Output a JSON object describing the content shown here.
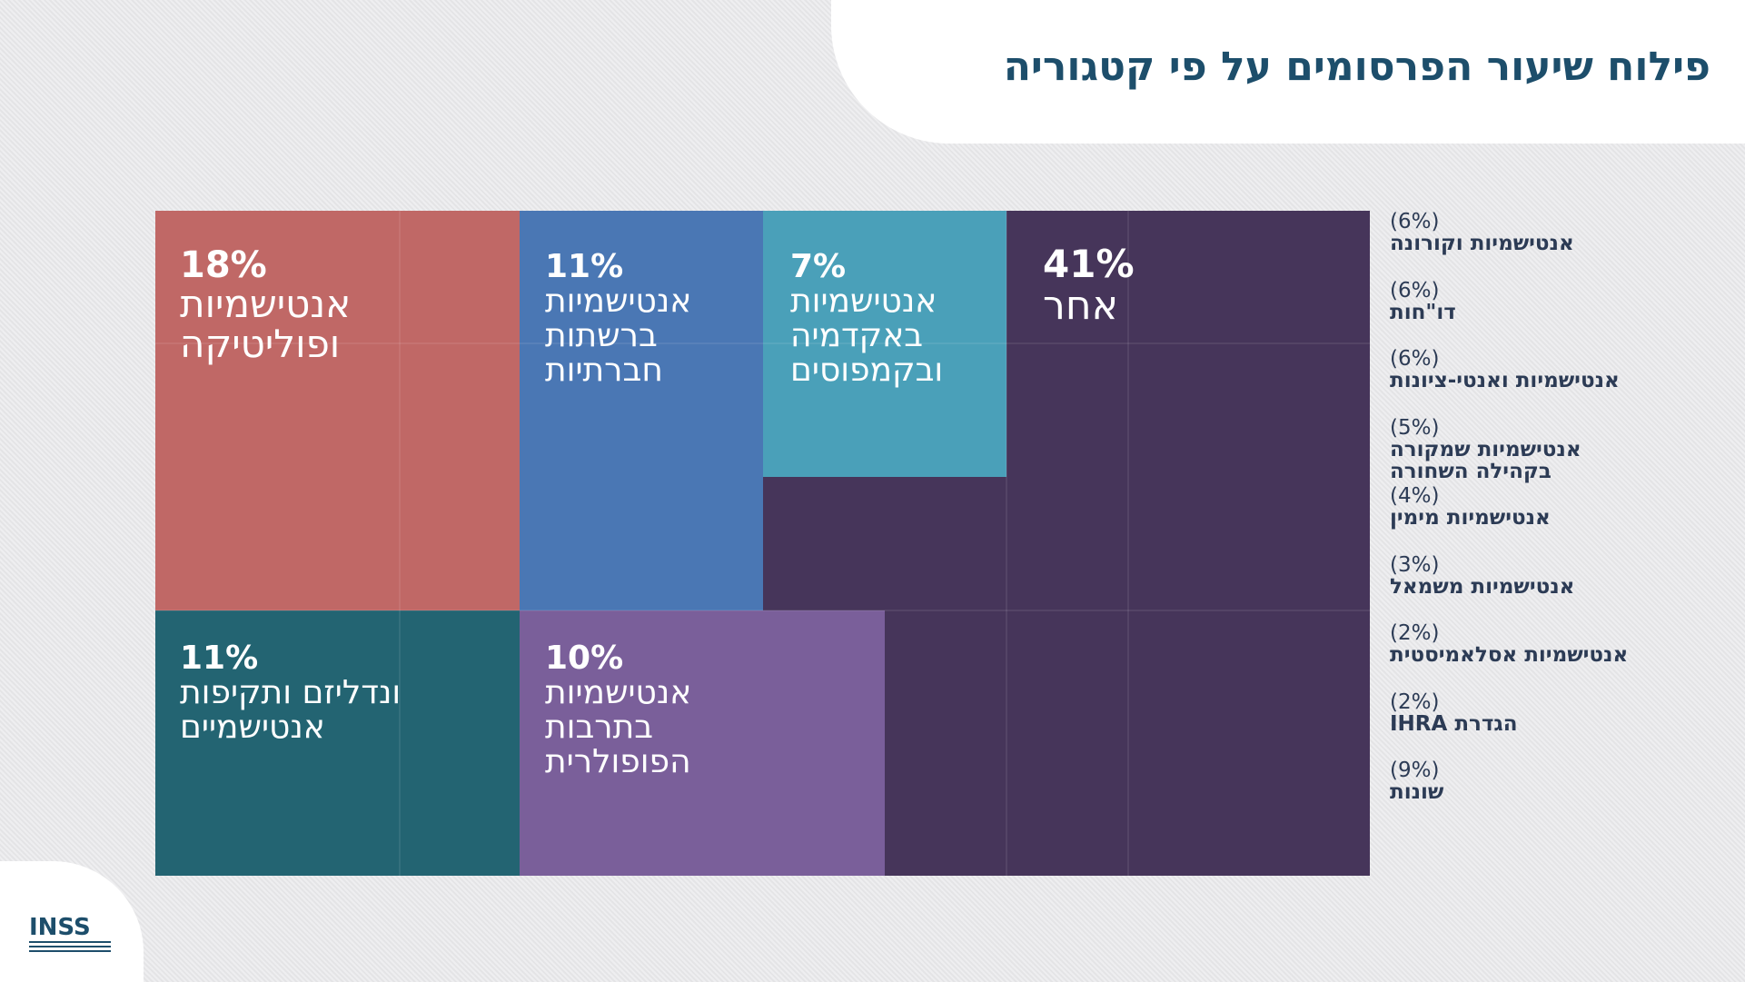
{
  "title": "פילוח שיעור הפרסומים על פי קטגוריה",
  "logo": {
    "text": "INSS"
  },
  "chart_data": {
    "type": "treemap",
    "title": "פילוח שיעור הפרסומים על פי קטגוריה",
    "items": [
      {
        "pct": "18%",
        "label": "אנטישמיות\nופוליטיקה",
        "value": 18,
        "color": "#c06866"
      },
      {
        "pct": "11%",
        "label": "ונדליזם ותקיפות\nאנטישמיים",
        "value": 11,
        "color": "#236472"
      },
      {
        "pct": "11%",
        "label": "אנטישמיות\nברשתות\nחברתיות",
        "value": 11,
        "color": "#4a77b4"
      },
      {
        "pct": "10%",
        "label": "אנטישמיות\nבתרבות\nהפופולרית",
        "value": 10,
        "color": "#7a5f9a"
      },
      {
        "pct": "7%",
        "label": "אנטישמיות\nבאקדמיה\nובקמפוסים",
        "value": 7,
        "color": "#4aa0b9"
      },
      {
        "pct": "41%",
        "label": "אחר",
        "value": 41,
        "color": "#46355a"
      }
    ],
    "other_breakdown": [
      {
        "pct": "(6%)",
        "label": "אנטישמיות וקורונה",
        "value": 6
      },
      {
        "pct": "(6%)",
        "label": "דו\"חות",
        "value": 6
      },
      {
        "pct": "(6%)",
        "label": "אנטישמיות ואנטי-ציונות",
        "value": 6
      },
      {
        "pct": "(5%)",
        "label": "אנטישמיות שמקורה\nבקהילה השחורה",
        "value": 5
      },
      {
        "pct": "(4%)",
        "label": "אנטישמיות מימין",
        "value": 4
      },
      {
        "pct": "(3%)",
        "label": "אנטישמיות משמאל",
        "value": 3
      },
      {
        "pct": "(2%)",
        "label": "אנטישמיות אסלאמיסטית",
        "value": 2
      },
      {
        "pct": "(2%)",
        "label": "הגדרת IHRA",
        "value": 2
      },
      {
        "pct": "(9%)",
        "label": "שונות",
        "value": 9
      }
    ]
  }
}
